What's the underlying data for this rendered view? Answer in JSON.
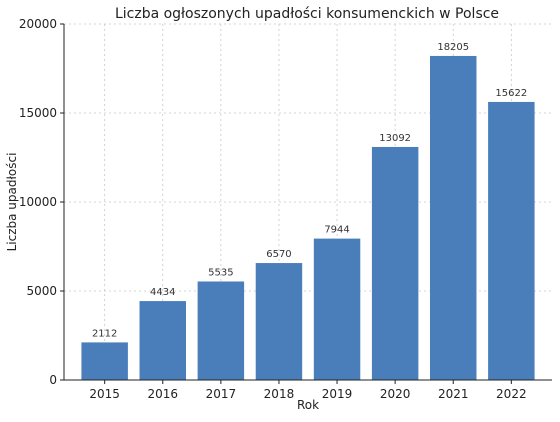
{
  "chart_data": {
    "type": "bar",
    "title": "Liczba ogłoszonych upadłości konsumenckich w Polsce",
    "xlabel": "Rok",
    "ylabel": "Liczba upadłości",
    "categories": [
      "2015",
      "2016",
      "2017",
      "2018",
      "2019",
      "2020",
      "2021",
      "2022"
    ],
    "values": [
      2112,
      4434,
      5535,
      6570,
      7944,
      13092,
      18205,
      15622
    ],
    "data_labels": [
      "2112",
      "4434",
      "5535",
      "6570",
      "7944",
      "13092",
      "18205",
      "15622"
    ],
    "ylim": [
      0,
      20000
    ],
    "yticks": [
      0,
      5000,
      10000,
      15000,
      20000
    ],
    "ytick_labels": [
      "0",
      "5000",
      "10000",
      "15000",
      "20000"
    ],
    "grid": true,
    "bar_color": "#4a7ebb"
  }
}
